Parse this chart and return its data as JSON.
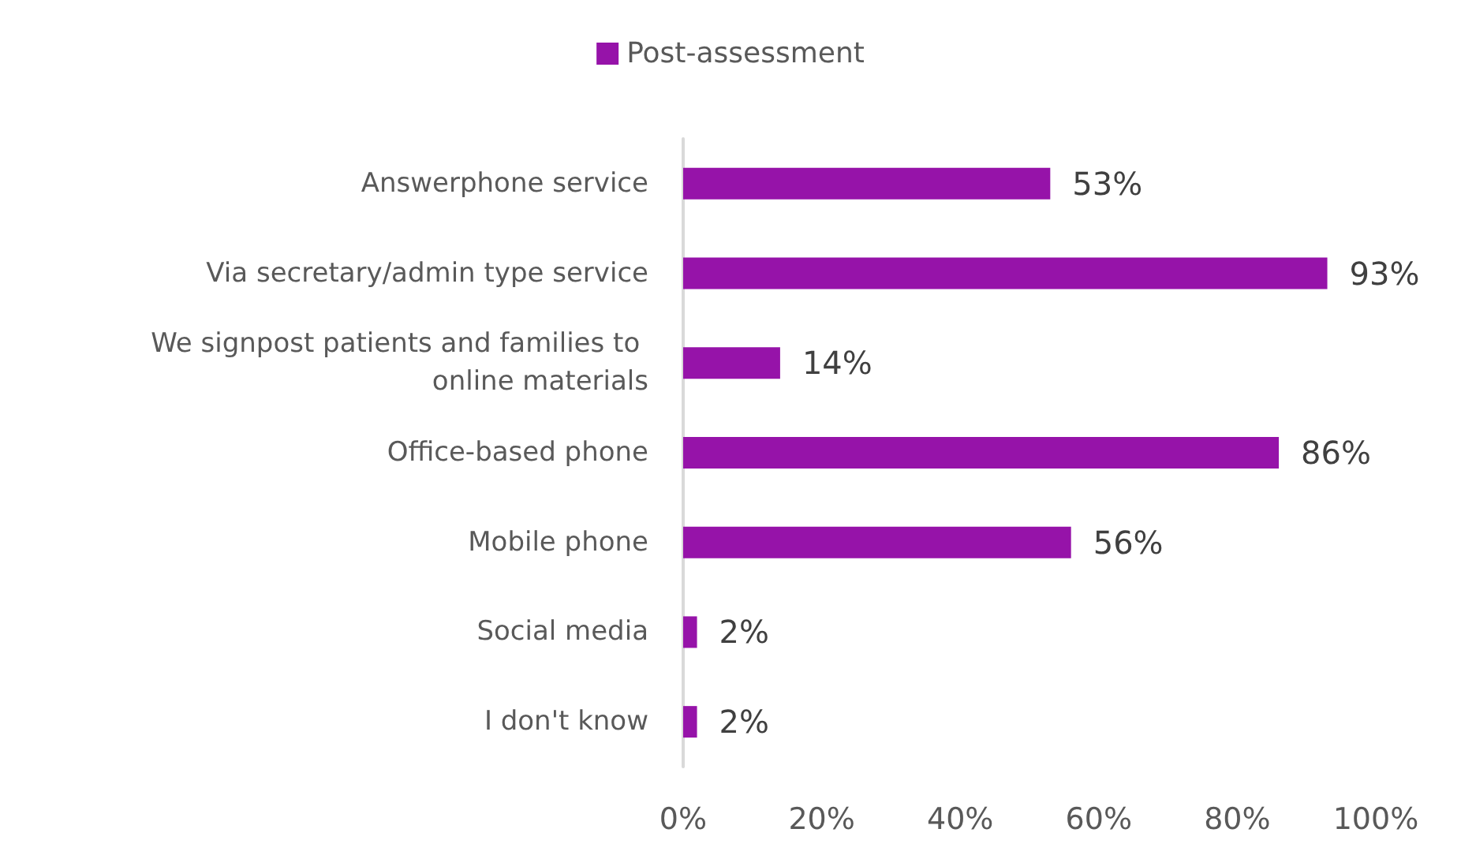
{
  "chart_data": {
    "type": "bar",
    "orientation": "horizontal",
    "categories": [
      "Answerphone service",
      "Via secretary/admin type service",
      "We signpost patients and families to online materials",
      "Office-based phone",
      "Mobile phone",
      "Social media",
      "I don't know"
    ],
    "series": [
      {
        "name": "Post-assessment",
        "color": "#9613a9",
        "values": [
          53,
          93,
          14,
          86,
          56,
          2,
          2
        ],
        "value_labels": [
          "53%",
          "93%",
          "14%",
          "86%",
          "56%",
          "2%",
          "2%"
        ]
      }
    ],
    "xlim": [
      0,
      100
    ],
    "xticks": [
      {
        "value": 0,
        "label": "0%"
      },
      {
        "value": 20,
        "label": "20%"
      },
      {
        "value": 40,
        "label": "40%"
      },
      {
        "value": 60,
        "label": "60%"
      },
      {
        "value": 80,
        "label": "80%"
      },
      {
        "value": 100,
        "label": "100%"
      }
    ],
    "grid": false,
    "legend": "top"
  }
}
